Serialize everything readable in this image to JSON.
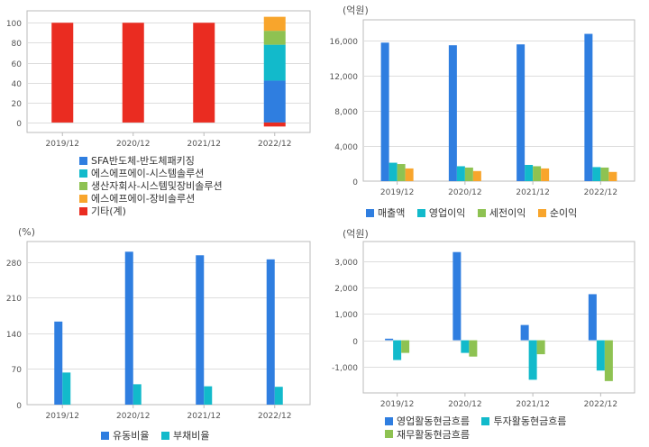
{
  "colors": {
    "blue": "#2f7ee0",
    "teal": "#12bacb",
    "green": "#8ec252",
    "orange": "#f8a52c",
    "red": "#ea2c21",
    "grid": "#dddddd",
    "axis": "#bbbbbb"
  },
  "chart_data": [
    {
      "id": "segments",
      "type": "bar",
      "stacked": true,
      "title": "",
      "unit_label": "",
      "categories": [
        "2019/12",
        "2020/12",
        "2021/12",
        "2022/12"
      ],
      "yticks": [
        "0",
        "20",
        "40",
        "60",
        "80",
        "100"
      ],
      "ylim": [
        -10,
        112
      ],
      "grid": true,
      "legend_position": "bottom",
      "series": [
        {
          "name": "SFA반도체-반도체패키징",
          "color": "#2f7ee0",
          "values": [
            0,
            0,
            0,
            42
          ]
        },
        {
          "name": "에스에프에이-시스템솔루션",
          "color": "#12bacb",
          "values": [
            0,
            0,
            0,
            36
          ]
        },
        {
          "name": "생산자회사-시스템및장비솔루션",
          "color": "#8ec252",
          "values": [
            0,
            0,
            0,
            14
          ]
        },
        {
          "name": "에스에프에이-장비솔루션",
          "color": "#f8a52c",
          "values": [
            0,
            0,
            0,
            14
          ]
        },
        {
          "name": "기타(계)",
          "color": "#ea2c21",
          "values": [
            100,
            100,
            100,
            -4
          ]
        }
      ]
    },
    {
      "id": "income",
      "type": "bar",
      "title": "",
      "unit_label": "(억원)",
      "categories": [
        "2019/12",
        "2020/12",
        "2021/12",
        "2022/12"
      ],
      "yticks": [
        "0",
        "4,000",
        "8,000",
        "12,000",
        "16,000"
      ],
      "ylim": [
        0,
        18400
      ],
      "grid": true,
      "legend_position": "bottom",
      "series": [
        {
          "name": "매출액",
          "color": "#2f7ee0",
          "values": [
            15800,
            15500,
            15600,
            16800
          ]
        },
        {
          "name": "영업이익",
          "color": "#12bacb",
          "values": [
            2100,
            1700,
            1850,
            1600
          ]
        },
        {
          "name": "세전이익",
          "color": "#8ec252",
          "values": [
            1950,
            1550,
            1700,
            1550
          ]
        },
        {
          "name": "순이익",
          "color": "#f8a52c",
          "values": [
            1450,
            1150,
            1450,
            1050
          ]
        }
      ]
    },
    {
      "id": "ratios",
      "type": "bar",
      "title": "",
      "unit_label": "(%)",
      "categories": [
        "2019/12",
        "2020/12",
        "2021/12",
        "2022/12"
      ],
      "yticks": [
        "0",
        "70",
        "140",
        "210",
        "280"
      ],
      "ylim": [
        0,
        320
      ],
      "grid": true,
      "legend_position": "bottom",
      "series": [
        {
          "name": "유동비율",
          "color": "#2f7ee0",
          "values": [
            163,
            300,
            293,
            285
          ]
        },
        {
          "name": "부채비율",
          "color": "#12bacb",
          "values": [
            63,
            40,
            36,
            35
          ]
        }
      ]
    },
    {
      "id": "cashflow",
      "type": "bar",
      "title": "",
      "unit_label": "(억원)",
      "categories": [
        "2019/12",
        "2020/12",
        "2021/12",
        "2022/12"
      ],
      "yticks": [
        "-1,000",
        "0",
        "1,000",
        "2,000",
        "3,000"
      ],
      "ylim": [
        -2000,
        3750
      ],
      "grid": true,
      "legend_position": "bottom",
      "series": [
        {
          "name": "영업활동현금흐름",
          "color": "#2f7ee0",
          "values": [
            60,
            3350,
            580,
            1750
          ]
        },
        {
          "name": "투자활동현금흐름",
          "color": "#12bacb",
          "values": [
            -750,
            -480,
            -1500,
            -1150
          ]
        },
        {
          "name": "재무활동현금흐름",
          "color": "#8ec252",
          "values": [
            -480,
            -620,
            -530,
            -1550
          ]
        }
      ]
    }
  ]
}
